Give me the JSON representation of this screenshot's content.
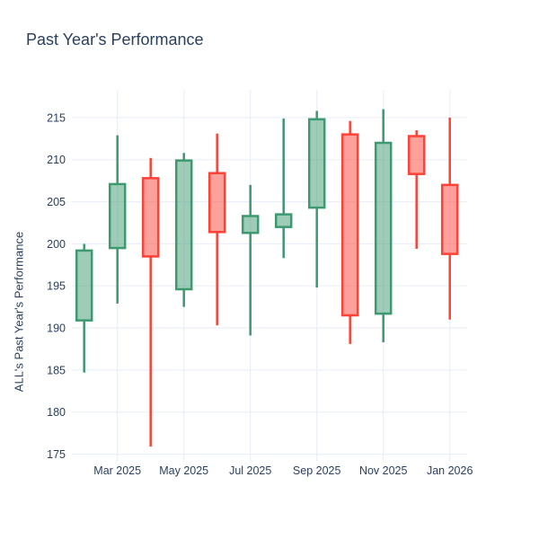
{
  "title": "Past Year's Performance",
  "colors": {
    "background": "#FFFFFF",
    "text": "#2a3f5f",
    "grid": "#EBF0F8",
    "increasing_line": "#3D9970",
    "decreasing_line": "#FF4136",
    "increasing_fill": "rgba(61,153,112,0.5)",
    "decreasing_fill": "rgba(255,65,54,0.5)"
  },
  "chart_data": {
    "type": "candlestick",
    "title": "Past Year's Performance",
    "xlabel": "",
    "ylabel": "ALL's Past Year's Performance",
    "categories": [
      "Feb 2025",
      "Mar 2025",
      "Apr 2025",
      "May 2025",
      "Jun 2025",
      "Jul 2025",
      "Aug 2025",
      "Sep 2025",
      "Oct 2025",
      "Nov 2025",
      "Dec 2025",
      "Jan 2026"
    ],
    "ohlc": [
      {
        "x": "Feb 2025",
        "open": 190.9,
        "high": 200.0,
        "low": 184.7,
        "close": 199.2,
        "direction": "increasing"
      },
      {
        "x": "Mar 2025",
        "open": 199.5,
        "high": 212.9,
        "low": 192.9,
        "close": 207.1,
        "direction": "increasing"
      },
      {
        "x": "Apr 2025",
        "open": 207.8,
        "high": 210.2,
        "low": 175.9,
        "close": 198.5,
        "direction": "decreasing"
      },
      {
        "x": "May 2025",
        "open": 194.6,
        "high": 210.8,
        "low": 192.5,
        "close": 209.9,
        "direction": "increasing"
      },
      {
        "x": "Jun 2025",
        "open": 208.4,
        "high": 213.1,
        "low": 190.3,
        "close": 201.4,
        "direction": "decreasing"
      },
      {
        "x": "Jul 2025",
        "open": 201.3,
        "high": 207.0,
        "low": 189.1,
        "close": 203.3,
        "direction": "increasing"
      },
      {
        "x": "Aug 2025",
        "open": 202.0,
        "high": 214.9,
        "low": 198.3,
        "close": 203.5,
        "direction": "increasing"
      },
      {
        "x": "Sep 2025",
        "open": 204.3,
        "high": 215.8,
        "low": 194.8,
        "close": 214.8,
        "direction": "increasing"
      },
      {
        "x": "Oct 2025",
        "open": 213.0,
        "high": 214.6,
        "low": 188.1,
        "close": 191.5,
        "direction": "decreasing"
      },
      {
        "x": "Nov 2025",
        "open": 191.7,
        "high": 216.0,
        "low": 188.3,
        "close": 212.0,
        "direction": "increasing"
      },
      {
        "x": "Dec 2025",
        "open": 212.8,
        "high": 213.5,
        "low": 199.4,
        "close": 208.3,
        "direction": "decreasing"
      },
      {
        "x": "Jan 2026",
        "open": 207.0,
        "high": 215.0,
        "low": 191.0,
        "close": 198.8,
        "direction": "decreasing"
      }
    ],
    "x_ticks": {
      "labels": [
        "Mar 2025",
        "May 2025",
        "Jul 2025",
        "Sep 2025",
        "Nov 2025",
        "Jan 2026"
      ],
      "indices": [
        1,
        3,
        5,
        7,
        9,
        11
      ]
    },
    "y_ticks": [
      175,
      180,
      185,
      190,
      195,
      200,
      205,
      210,
      215
    ],
    "y_range": [
      174.1,
      218.3
    ],
    "grid": true,
    "legend": false
  }
}
